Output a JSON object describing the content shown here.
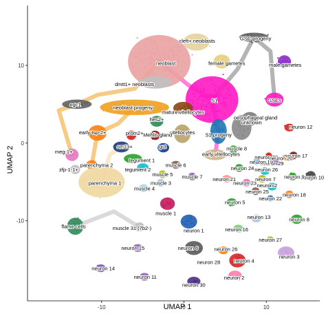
{
  "chart_data": {
    "type": "scatter",
    "title": "",
    "xlabel": "UMAP 1",
    "ylabel": "UMAP 2",
    "xlim": [
      -19,
      16.5
    ],
    "ylim": [
      -20.3,
      17.7
    ],
    "x_ticks": [
      -10,
      0,
      10
    ],
    "y_ticks": [
      -10,
      0,
      10
    ],
    "grid": false,
    "legend": "none",
    "clusters": [
      {
        "label": "cleft+ neoblasts",
        "x": 1.5,
        "y": 13.0,
        "rx": 1.6,
        "ry": 1.1,
        "color": "#e6d19c",
        "lx": 1.6,
        "ly": 13.2
      },
      {
        "label": "GSC progeny",
        "x": 8.5,
        "y": 13.6,
        "rx": 1.8,
        "ry": 0.6,
        "color": "#5e5e5e",
        "lx": 8.7,
        "ly": 13.5
      },
      {
        "label": "female gametes",
        "x": 4.6,
        "y": 10.5,
        "rx": 1.0,
        "ry": 0.9,
        "color": "#e5d07a",
        "lx": 5.2,
        "ly": 10.3
      },
      {
        "label": "male gametes",
        "x": 12.2,
        "y": 10.5,
        "rx": 0.8,
        "ry": 0.8,
        "color": "#8b2fc9",
        "lx": 12.3,
        "ly": 10.1
      },
      {
        "label": "neoblast",
        "x": -3.0,
        "y": 10.5,
        "rx": 3.8,
        "ry": 3.4,
        "color": "#eaa2a2",
        "lx": -2.2,
        "ly": 10.3
      },
      {
        "label": "dmtt1+ neoblasts",
        "x": -3.5,
        "y": 7.8,
        "rx": 2.0,
        "ry": 0.8,
        "color": "#c0c0c0",
        "lx": -6.0,
        "ly": 7.6
      },
      {
        "label": "S1",
        "x": 3.4,
        "y": 5.6,
        "rx": 3.2,
        "ry": 3.0,
        "color": "#ff18c4",
        "lx": 3.7,
        "ly": 5.5
      },
      {
        "label": "GSCs",
        "x": 11.0,
        "y": 5.6,
        "rx": 1.1,
        "ry": 0.9,
        "color": "#ff18c4",
        "lx": 11.0,
        "ly": 5.5
      },
      {
        "label": "egc1",
        "x": -13.0,
        "y": 5.0,
        "rx": 1.8,
        "ry": 0.6,
        "color": "#606060",
        "lx": -13.2,
        "ly": 5.0
      },
      {
        "label": "neoblast progeny",
        "x": -6.0,
        "y": 4.6,
        "rx": 4.2,
        "ry": 1.0,
        "color": "#f0a020",
        "lx": -6.2,
        "ly": 4.6
      },
      {
        "label": "mature vitellocytes",
        "x": -0.1,
        "y": 4.5,
        "rx": 1.2,
        "ry": 0.8,
        "color": "#8b4513",
        "lx": -0.1,
        "ly": 4.0
      },
      {
        "label": "oesophageal gland",
        "x": 8.0,
        "y": 3.1,
        "rx": 1.0,
        "ry": 0.9,
        "color": "#7a7a7a",
        "lx": 8.7,
        "ly": 3.3
      },
      {
        "label": "hes2+",
        "x": -3.3,
        "y": 2.8,
        "rx": 0.8,
        "ry": 0.7,
        "color": "#2e8b57",
        "lx": -3.3,
        "ly": 3.1
      },
      {
        "label": "vitellocytes",
        "x": -0.2,
        "y": 1.2,
        "rx": 1.0,
        "ry": 1.2,
        "color": "#b8a36a",
        "lx": -0.2,
        "ly": 1.4
      },
      {
        "label": "Mehlis gland",
        "x": -3.5,
        "y": 1.0,
        "rx": 0.6,
        "ry": 0.6,
        "color": "#8b1a1a",
        "lx": -3.2,
        "ly": 1.1
      },
      {
        "label": "unknown",
        "x": 7.0,
        "y": 2.0,
        "rx": 1.2,
        "ry": 1.6,
        "color": "#888888",
        "lx": 8.2,
        "ly": 2.7
      },
      {
        "label": "early tsp-2+",
        "x": -10.5,
        "y": 1.3,
        "rx": 1.1,
        "ry": 1.0,
        "color": "#ff7f0e",
        "lx": -11.1,
        "ly": 1.4
      },
      {
        "label": "prom2+",
        "x": -6.4,
        "y": 1.0,
        "rx": 0.6,
        "ry": 0.6,
        "color": "#d62728",
        "lx": -6.0,
        "ly": 1.3
      },
      {
        "label": "S1 progeny",
        "x": 4.2,
        "y": 1.5,
        "rx": 1.0,
        "ry": 1.6,
        "color": "#1f77b4",
        "lx": 4.2,
        "ly": 1.1
      },
      {
        "label": "neuron 12",
        "x": 12.8,
        "y": 2.0,
        "rx": 0.6,
        "ry": 0.5,
        "color": "#d62728",
        "lx": 14.2,
        "ly": 2.1
      },
      {
        "label": "sm13+",
        "x": -7.6,
        "y": -0.5,
        "rx": 1.0,
        "ry": 0.7,
        "color": "#1f3d7a",
        "lx": -7.2,
        "ly": -0.4
      },
      {
        "label": "gut",
        "x": -2.5,
        "y": -0.6,
        "rx": 0.7,
        "ry": 0.6,
        "color": "#0b3d91",
        "lx": -2.6,
        "ly": -0.4
      },
      {
        "label": "early vitellocytes",
        "x": 3.8,
        "y": -1.5,
        "rx": 1.4,
        "ry": 0.7,
        "color": "#d2b48c",
        "lx": 4.5,
        "ly": -1.4
      },
      {
        "label": "muscle 8",
        "x": 6.0,
        "y": -0.8,
        "rx": 0.5,
        "ry": 0.5,
        "color": "#2ca02c",
        "lx": 6.4,
        "ly": -0.7
      },
      {
        "label": "meg-1+",
        "x": -13.6,
        "y": -1.5,
        "rx": 0.8,
        "ry": 0.8,
        "color": "#e377c2",
        "lx": -14.6,
        "ly": -1.1
      },
      {
        "label": "zfp-1-1+",
        "x": -13.2,
        "y": -3.4,
        "rx": 0.6,
        "ry": 0.6,
        "color": "#c0c0c0",
        "lx": -14.0,
        "ly": -3.4
      },
      {
        "label": "tegument 1",
        "x": -6.2,
        "y": -2.0,
        "rx": 1.1,
        "ry": 0.6,
        "color": "#2ca02c",
        "lx": -5.1,
        "ly": -2.2
      },
      {
        "label": "parenchyma 2",
        "x": -11.2,
        "y": -2.8,
        "rx": 0.7,
        "ry": 0.6,
        "color": "#ff7f0e",
        "lx": -10.6,
        "ly": -2.8
      },
      {
        "label": "tegument 2",
        "x": -5.0,
        "y": -3.1,
        "rx": 0.7,
        "ry": 0.5,
        "color": "#17becf",
        "lx": -5.6,
        "ly": -3.4
      },
      {
        "label": "muscle 6",
        "x": -1.0,
        "y": -2.8,
        "rx": 0.6,
        "ry": 0.5,
        "color": "#8c564b",
        "lx": -1.0,
        "ly": -2.8
      },
      {
        "label": "muscle 5",
        "x": -2.6,
        "y": -4.0,
        "rx": 0.5,
        "ry": 0.5,
        "color": "#bcbd22",
        "lx": -2.6,
        "ly": -4.0
      },
      {
        "label": "muscle 7",
        "x": 1.0,
        "y": -4.3,
        "rx": 0.5,
        "ry": 0.5,
        "color": "#9467bd",
        "lx": 1.0,
        "ly": -4.3
      },
      {
        "label": "muscle 3",
        "x": -2.8,
        "y": -5.1,
        "rx": 0.5,
        "ry": 0.5,
        "color": "#aec7e8",
        "lx": -2.8,
        "ly": -5.1
      },
      {
        "label": "parenchyma 1",
        "x": -10.0,
        "y": -5.0,
        "rx": 2.8,
        "ry": 2.0,
        "color": "#f0d8a0",
        "lx": -9.6,
        "ly": -5.1
      },
      {
        "label": "muscle 4",
        "x": -4.9,
        "y": -5.8,
        "rx": 0.6,
        "ry": 0.5,
        "color": "#9edae5",
        "lx": -4.8,
        "ly": -5.8
      },
      {
        "label": "neuron 21",
        "x": 5.2,
        "y": -4.6,
        "rx": 0.5,
        "ry": 0.5,
        "color": "#ff9896",
        "lx": 4.9,
        "ly": -4.6
      },
      {
        "label": "neuron 24",
        "x": 6.7,
        "y": -3.2,
        "rx": 0.5,
        "ry": 0.5,
        "color": "#2ca02c",
        "lx": 7.1,
        "ly": -3.2
      },
      {
        "label": "neuron 28",
        "x": 10.3,
        "y": -1.6,
        "rx": 0.4,
        "ry": 0.4,
        "color": "#d62728",
        "lx": 10.0,
        "ly": -1.8
      },
      {
        "label": "neuron 29",
        "x": 11.2,
        "y": -2.5,
        "rx": 0.4,
        "ry": 0.4,
        "color": "#9467bd",
        "lx": 10.7,
        "ly": -2.6
      },
      {
        "label": "neuron 17",
        "x": 13.3,
        "y": -1.6,
        "rx": 0.5,
        "ry": 0.5,
        "color": "#7f1d1d",
        "lx": 13.6,
        "ly": -1.6
      },
      {
        "label": "neuron 19",
        "x": 8.8,
        "y": -2.4,
        "rx": 0.4,
        "ry": 0.4,
        "color": "#1f77b4",
        "lx": 9.4,
        "ly": -2.4
      },
      {
        "label": "neuron 20",
        "x": 12.3,
        "y": -1.9,
        "rx": 0.4,
        "ry": 0.4,
        "color": "#ff7f0e",
        "lx": 11.8,
        "ly": -1.9
      },
      {
        "label": "neuron 26",
        "x": 9.8,
        "y": -3.6,
        "rx": 0.5,
        "ry": 0.5,
        "color": "#17becf",
        "lx": 10.0,
        "ly": -3.4
      },
      {
        "label": "neuron 23",
        "x": 7.6,
        "y": -5.1,
        "rx": 0.5,
        "ry": 0.5,
        "color": "#e377c2",
        "lx": 7.4,
        "ly": -5.1
      },
      {
        "label": "neuron 7",
        "x": 9.5,
        "y": -4.6,
        "rx": 0.5,
        "ry": 0.5,
        "color": "#bcbd22",
        "lx": 9.9,
        "ly": -4.6
      },
      {
        "label": "neuron 10",
        "x": 15.4,
        "y": -4.2,
        "rx": 0.6,
        "ry": 0.6,
        "color": "#444444",
        "lx": 15.6,
        "ly": -4.4
      },
      {
        "label": "neuron 9",
        "x": 13.2,
        "y": -4.3,
        "rx": 0.5,
        "ry": 0.5,
        "color": "#2ca02c",
        "lx": 13.4,
        "ly": -4.3
      },
      {
        "label": "neuron 25",
        "x": 8.7,
        "y": -6.2,
        "rx": 0.5,
        "ry": 0.5,
        "color": "#8c564b",
        "lx": 8.9,
        "ly": -6.2
      },
      {
        "label": "neuron 18",
        "x": 12.8,
        "y": -6.6,
        "rx": 0.5,
        "ry": 0.5,
        "color": "#ff7f0e",
        "lx": 13.4,
        "ly": -6.6
      },
      {
        "label": "neuron 22",
        "x": 10.5,
        "y": -7.1,
        "rx": 0.4,
        "ry": 0.4,
        "color": "#1f77b4",
        "lx": 10.5,
        "ly": -7.1
      },
      {
        "label": "neuron 2",
        "x": 10.7,
        "y": -5.6,
        "rx": 0.6,
        "ry": 0.5,
        "color": "#17becf",
        "lx": 10.1,
        "ly": -5.4
      },
      {
        "label": "neuron 5",
        "x": 5.8,
        "y": -7.6,
        "rx": 0.6,
        "ry": 0.5,
        "color": "#2ca02c",
        "lx": 6.2,
        "ly": -7.6
      },
      {
        "label": "neuron 13",
        "x": 8.8,
        "y": -9.7,
        "rx": 0.6,
        "ry": 0.5,
        "color": "#aec7e8",
        "lx": 9.1,
        "ly": -9.5
      },
      {
        "label": "neuron 8",
        "x": 13.7,
        "y": -9.8,
        "rx": 0.7,
        "ry": 0.6,
        "color": "#2ca02c",
        "lx": 14.0,
        "ly": -9.8
      },
      {
        "label": "neuron 1",
        "x": 0.6,
        "y": -10.1,
        "rx": 1.0,
        "ry": 0.9,
        "color": "#1f5fb4",
        "lx": 1.2,
        "ly": -11.2
      },
      {
        "label": "neuron 16",
        "x": 6.6,
        "y": -11.0,
        "rx": 0.6,
        "ry": 0.5,
        "color": "#7fd07f",
        "lx": 6.4,
        "ly": -11.1
      },
      {
        "label": "muscle 1",
        "x": -2.0,
        "y": -7.8,
        "rx": 0.9,
        "ry": 0.8,
        "color": "#c2185b",
        "lx": -2.2,
        "ly": -9.0
      },
      {
        "label": "flame cells",
        "x": -13.2,
        "y": -10.7,
        "rx": 1.0,
        "ry": 1.1,
        "color": "#2e8b57",
        "lx": -13.4,
        "ly": -10.7
      },
      {
        "label": "muscle 31 (7b2-)",
        "x": -5.4,
        "y": -10.8,
        "rx": 0.6,
        "ry": 0.6,
        "color": "#c0c0c0",
        "lx": -6.3,
        "ly": -10.9
      },
      {
        "label": "neuron 15",
        "x": -5.6,
        "y": -13.5,
        "rx": 0.6,
        "ry": 0.5,
        "color": "#9467bd",
        "lx": -6.2,
        "ly": -13.5
      },
      {
        "label": "neuron 27",
        "x": 10.5,
        "y": -12.4,
        "rx": 0.4,
        "ry": 0.4,
        "color": "#bcbd22",
        "lx": 10.5,
        "ly": -12.4
      },
      {
        "label": "neuron 3",
        "x": 12.4,
        "y": -14.1,
        "rx": 1.0,
        "ry": 0.8,
        "color": "#c9a0dc",
        "lx": 12.8,
        "ly": -14.6
      },
      {
        "label": "neuron 6",
        "x": 1.2,
        "y": -13.5,
        "rx": 1.1,
        "ry": 0.9,
        "color": "#5a5a5a",
        "lx": 0.5,
        "ly": -13.5
      },
      {
        "label": "neuron 26",
        "x": 4.8,
        "y": -13.8,
        "rx": 0.6,
        "ry": 0.5,
        "color": "#ff7f0e",
        "lx": 5.1,
        "ly": -13.6
      },
      {
        "label": "neuron 4",
        "x": 6.5,
        "y": -15.1,
        "rx": 1.0,
        "ry": 0.9,
        "color": "#d62728",
        "lx": 7.3,
        "ly": -15.1
      },
      {
        "label": "neuron 14",
        "x": -10.1,
        "y": -16.1,
        "rx": 0.6,
        "ry": 0.5,
        "color": "#7e57c2",
        "lx": -9.8,
        "ly": -16.1
      },
      {
        "label": "neuron 11",
        "x": -4.8,
        "y": -17.2,
        "rx": 0.6,
        "ry": 0.5,
        "color": "#9467bd",
        "lx": -4.7,
        "ly": -17.2
      },
      {
        "label": "neuron 2",
        "x": 6.2,
        "y": -17.0,
        "rx": 0.8,
        "ry": 0.6,
        "color": "#ff7fb0",
        "lx": 6.1,
        "ly": -17.3
      },
      {
        "label": "neuron 30",
        "x": 1.2,
        "y": -17.8,
        "rx": 0.8,
        "ry": 0.6,
        "color": "#4b2e83",
        "lx": 1.2,
        "ly": -18.2
      }
    ],
    "extra_labels": [
      {
        "label": "neuron 28",
        "x": 3.0,
        "y": -15.3
      }
    ],
    "bridges": [
      {
        "path": [
          [
            -3.0,
            10.5
          ],
          [
            -6.0,
            7.0
          ],
          [
            -10.5,
            6.2
          ],
          [
            -13.0,
            5.0
          ],
          [
            -15.2,
            4.2
          ],
          [
            -13.6,
            -1.5
          ]
        ],
        "color": "#f0a020"
      },
      {
        "path": [
          [
            -3.0,
            10.5
          ],
          [
            0.5,
            7.5
          ],
          [
            3.4,
            5.6
          ]
        ],
        "color": "#ff18c4"
      },
      {
        "path": [
          [
            3.4,
            5.6
          ],
          [
            6.5,
            9.5
          ],
          [
            8.5,
            13.6
          ],
          [
            10.5,
            11.8
          ],
          [
            11.0,
            5.6
          ]
        ],
        "color": "#777777"
      },
      {
        "path": [
          [
            -6.0,
            4.6
          ],
          [
            -8.0,
            2.5
          ],
          [
            -10.5,
            1.3
          ],
          [
            -11.2,
            -2.8
          ]
        ],
        "color": "#f0a020"
      },
      {
        "path": [
          [
            3.4,
            5.6
          ],
          [
            4.2,
            1.5
          ],
          [
            3.8,
            -1.5
          ]
        ],
        "color": "#ff18c4"
      },
      {
        "path": [
          [
            -10.0,
            -5.0
          ],
          [
            -9.0,
            -1.5
          ],
          [
            -7.6,
            -0.5
          ]
        ],
        "color": "#f0d8a0"
      },
      {
        "path": [
          [
            -13.2,
            -10.7
          ],
          [
            -8.5,
            -8.8
          ],
          [
            -5.4,
            -10.8
          ]
        ],
        "color": "#bbbbbb"
      }
    ]
  }
}
